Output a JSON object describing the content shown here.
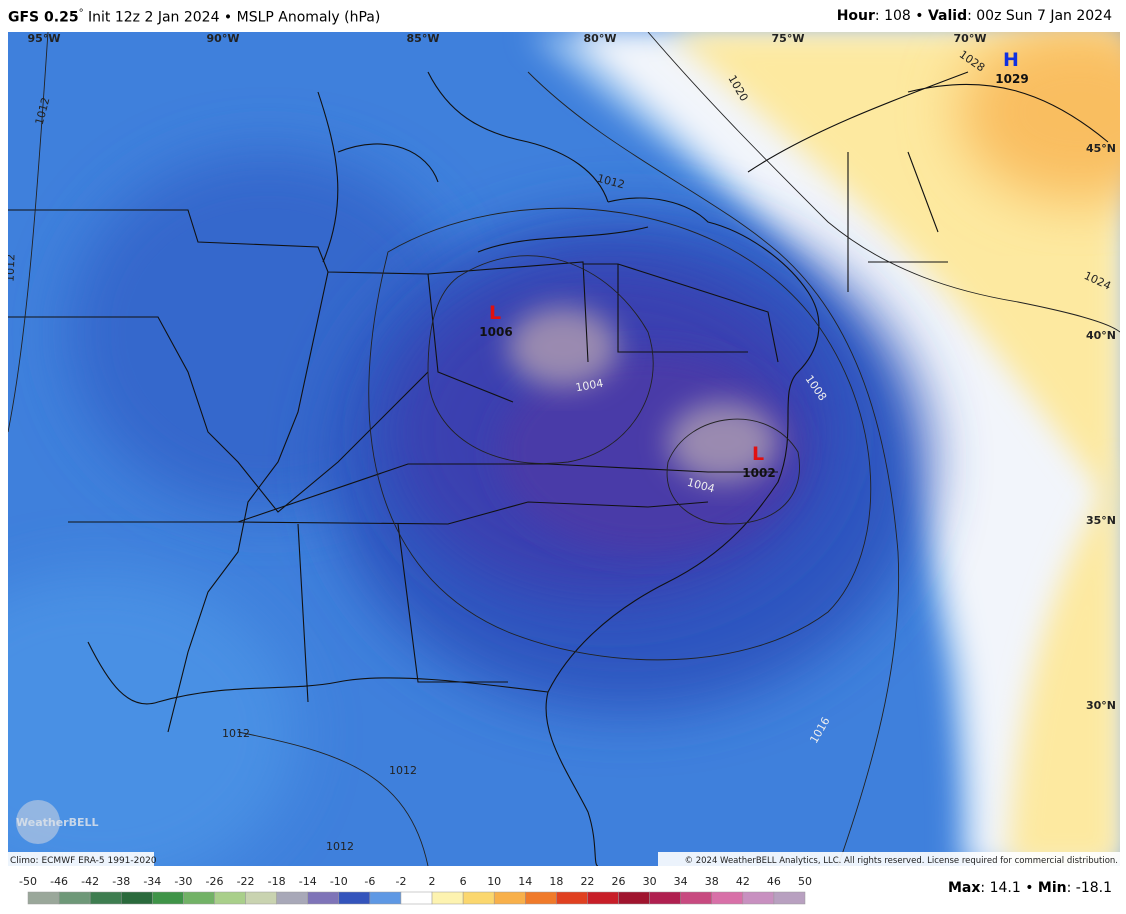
{
  "header": {
    "model": "GFS 0.25",
    "degree": "°",
    "description": "Init 12z 2 Jan 2024 • MSLP Anomaly (hPa)",
    "hour_label": "Hour",
    "hour_text": ": 108 •",
    "valid_label": "Valid",
    "valid_text": ": 00z Sun 7 Jan 2024"
  },
  "map": {
    "longitude_labels": [
      "95°W",
      "90°W",
      "85°W",
      "80°W",
      "75°W",
      "70°W"
    ],
    "latitude_labels": [
      "45°N",
      "40°N",
      "35°N",
      "30°N"
    ],
    "pressure_centers": [
      {
        "symbol": "L",
        "value": "1006"
      },
      {
        "symbol": "L",
        "value": "1002"
      },
      {
        "symbol": "H",
        "value": "1029"
      }
    ],
    "isobar_labels": [
      "1012",
      "1012",
      "1012",
      "1012",
      "1012",
      "1012",
      "1004",
      "1004",
      "1008",
      "1016",
      "1020",
      "1024",
      "1028"
    ],
    "climo": "Climo: ECMWF ERA-5 1991-2020",
    "copyright": "© 2024 WeatherBELL Analytics, LLC. All rights reserved. License required for commercial distribution.",
    "logo": "WeatherBELL"
  },
  "colorbar": {
    "ticks": [
      -50,
      -46,
      -42,
      -38,
      -34,
      -30,
      -26,
      -22,
      -18,
      -14,
      -10,
      -6,
      -2,
      2,
      6,
      10,
      14,
      18,
      22,
      26,
      30,
      34,
      38,
      42,
      46,
      50
    ],
    "colors": [
      "#9aa79a",
      "#6e9878",
      "#3e7d50",
      "#2a6a3c",
      "#3f9448",
      "#72b266",
      "#a9cf8a",
      "#c9d3b0",
      "#a8a8b8",
      "#7f74b8",
      "#3454bc",
      "#5e98e4",
      "#ffffff",
      "#fdf3b0",
      "#fbd76e",
      "#f8b04a",
      "#f07a2a",
      "#e04020",
      "#c81e28",
      "#a0142e",
      "#b02050",
      "#c84a80",
      "#d870a8",
      "#c890c0",
      "#b8a0c0"
    ]
  },
  "stats": {
    "max_label": "Max",
    "max_text": ": 14.1 •",
    "min_label": "Min",
    "min_text": ": -18.1"
  }
}
